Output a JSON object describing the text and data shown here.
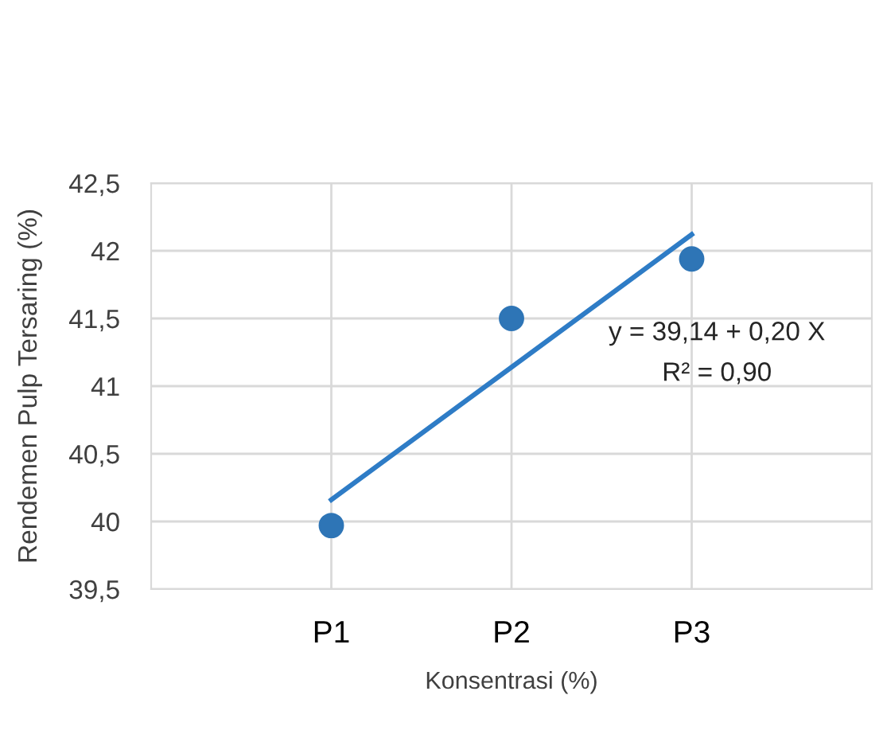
{
  "chart_data": {
    "type": "scatter",
    "xlabel": "Konsentrasi (%)",
    "ylabel": "Rendemen Pulp Tersaring (%)",
    "categories": [
      "P1",
      "P2",
      "P3"
    ],
    "series": [
      {
        "color": "#2e75b6",
        "marker": "circle",
        "values": [
          39.97,
          41.5,
          41.94
        ]
      },
      {
        "type": "line",
        "color": "#2e7cc6",
        "marker": "none",
        "line_style": "solid",
        "values": [
          40.16,
          41.14,
          42.12
        ]
      }
    ],
    "ylim": [
      39.5,
      42.5
    ],
    "yticks": [
      {
        "value": 39.5,
        "label": "39,5"
      },
      {
        "value": 40,
        "label": "40"
      },
      {
        "value": 40.5,
        "label": "40,5"
      },
      {
        "value": 41,
        "label": "41"
      },
      {
        "value": 41.5,
        "label": "41,5"
      },
      {
        "value": 42,
        "label": "42"
      },
      {
        "value": 42.5,
        "label": "42,5"
      }
    ],
    "grid": true,
    "annotations": [
      "y = 39,14 + 0,20 X",
      "R² = 0,90"
    ]
  }
}
